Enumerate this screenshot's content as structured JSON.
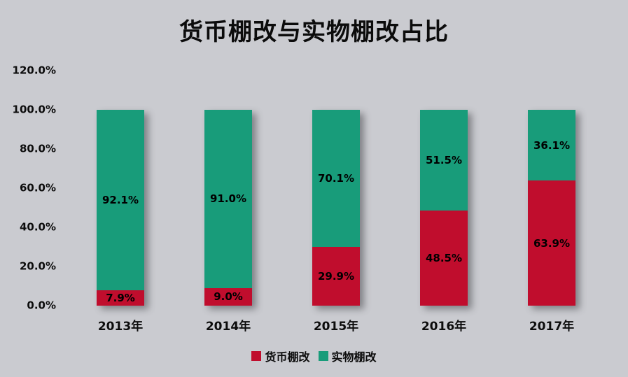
{
  "chart_data": {
    "type": "bar",
    "stacked": true,
    "title": "货币棚改与实物棚改占比",
    "categories": [
      "2013年",
      "2014年",
      "2015年",
      "2016年",
      "2017年"
    ],
    "series": [
      {
        "name": "货币棚改",
        "color": "#c00d2d",
        "values": [
          7.9,
          9.0,
          29.9,
          48.5,
          63.9
        ]
      },
      {
        "name": "实物棚改",
        "color": "#189c7a",
        "values": [
          92.1,
          91.0,
          70.1,
          51.5,
          36.1
        ]
      }
    ],
    "data_labels": {
      "货币棚改": [
        "7.9%",
        "9.0%",
        "29.9%",
        "48.5%",
        "63.9%"
      ],
      "实物棚改": [
        "92.1%",
        "91.0%",
        "70.1%",
        "51.5%",
        "36.1%"
      ]
    },
    "ylim": [
      0,
      120
    ],
    "ytick_values": [
      0,
      20,
      40,
      60,
      80,
      100,
      120
    ],
    "ytick_labels": [
      "0.0%",
      "20.0%",
      "40.0%",
      "60.0%",
      "80.0%",
      "100.0%",
      "120.0%"
    ],
    "legend": [
      "货币棚改",
      "实物棚改"
    ],
    "legend_position": "bottom",
    "grid": false,
    "background_color": "#cacbd0"
  }
}
